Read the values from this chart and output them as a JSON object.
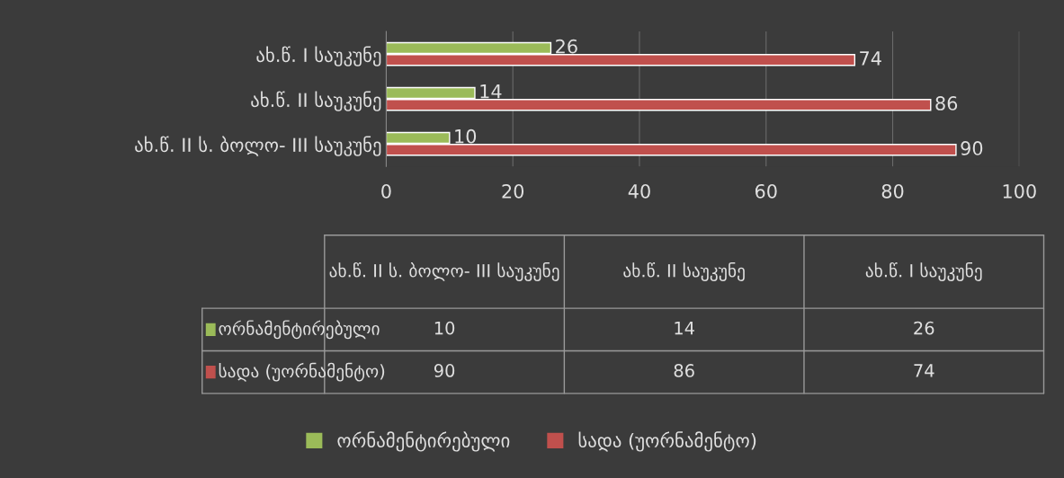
{
  "chart_data": {
    "type": "bar",
    "orientation": "horizontal",
    "categories": [
      "ახ.წ. I საუკუნე",
      "ახ.წ. II საუკუნე",
      "ახ.წ. II ს. ბოლო- III საუკუნე"
    ],
    "series": [
      {
        "name": "ორნამენტირებული",
        "color": "#9bbb59",
        "values": [
          26,
          14,
          10
        ]
      },
      {
        "name": "სადა (უორნამენტო)",
        "color": "#c0504d",
        "values": [
          74,
          86,
          90
        ]
      }
    ],
    "annotations": [
      "10",
      "14",
      "26",
      "90",
      "86",
      "74"
    ],
    "xlim": [
      0,
      100
    ],
    "xticks": [
      0,
      20,
      40,
      60,
      80,
      100
    ],
    "grid": "x",
    "data_labels": true,
    "legend": "bottom"
  }
}
